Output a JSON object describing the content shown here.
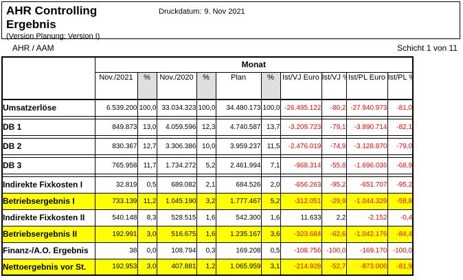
{
  "header": {
    "title": "AHR Controlling\nErgebnis",
    "version_note": "(Version Planung: Version I)",
    "print_date_label": "Druckdatum:",
    "print_date_value": "9. Nov 2021"
  },
  "meta": {
    "unit": "AHR / AAM",
    "page_info": "Schicht 1 von 11"
  },
  "colors": {
    "highlight": "#ffff00",
    "negative": "#ff0000",
    "hatch_gray": "#bfbfbf"
  },
  "table": {
    "group_header": "Monat",
    "columns": [
      {
        "label": "Nov./2021",
        "hatched": false
      },
      {
        "label": "%",
        "hatched": true
      },
      {
        "label": "Nov./2020",
        "hatched": false
      },
      {
        "label": "%",
        "hatched": true
      },
      {
        "label": "Plan",
        "hatched": false
      },
      {
        "label": "%",
        "hatched": true
      },
      {
        "label": "Ist/VJ\nEuro",
        "hatched": false
      },
      {
        "label": "Ist/VJ\n%",
        "hatched": false
      },
      {
        "label": "Ist/PL\nEuro",
        "hatched": false
      },
      {
        "label": "Ist/PL\n%",
        "hatched": false
      }
    ],
    "rows": [
      {
        "label": "Umsatzerlöse",
        "highlight": false,
        "spacer_after": true,
        "values": [
          "6.539.200",
          "100,0",
          "33.034.323",
          "100,0",
          "34.480.173",
          "100,0",
          "-26.495.122",
          "-80,2",
          "-27.940.973",
          "-81,0"
        ]
      },
      {
        "label": "DB 1",
        "highlight": false,
        "spacer_after": true,
        "values": [
          "849.873",
          "13,0",
          "4.059.596",
          "12,3",
          "4.740.587",
          "13,7",
          "-3.209.723",
          "-79,1",
          "-3.890.714",
          "-82,1"
        ]
      },
      {
        "label": "DB 2",
        "highlight": false,
        "spacer_after": true,
        "values": [
          "830.367",
          "12,7",
          "3.306.386",
          "10,0",
          "3.959.237",
          "11,5",
          "-2.476.019",
          "-74,9",
          "-3.128.870",
          "-79,0"
        ]
      },
      {
        "label": "DB 3",
        "highlight": false,
        "spacer_after": true,
        "values": [
          "765.958",
          "11,7",
          "1.734.272",
          "5,2",
          "2.461.994",
          "7,1",
          "-968.314",
          "-55,8",
          "-1.696.036",
          "-68,9"
        ]
      },
      {
        "label": "Indirekte Fixkosten I",
        "highlight": false,
        "spacer_after": false,
        "values": [
          "32.819",
          "0,5",
          "689.082",
          "2,1",
          "684.526",
          "2,0",
          "-656.263",
          "-95,2",
          "-651.707",
          "-95,2"
        ]
      },
      {
        "label": "Betriebsergebnis I",
        "highlight": true,
        "spacer_after": false,
        "values": [
          "733.139",
          "11,2",
          "1.045.190",
          "3,2",
          "1.777.467",
          "5,2",
          "-312.051",
          "-29,9",
          "-1.044.329",
          "-58,8"
        ]
      },
      {
        "label": "Indirekte Fixkosten II",
        "highlight": false,
        "spacer_after": false,
        "values": [
          "540.148",
          "8,3",
          "528.515",
          "1,6",
          "542.300",
          "1,6",
          "11.633",
          "2,2",
          "-2.152",
          "-0,4"
        ]
      },
      {
        "label": "Betriebsergebnis II",
        "highlight": true,
        "spacer_after": false,
        "values": [
          "192.991",
          "3,0",
          "516.675",
          "1,6",
          "1.235.167",
          "3,6",
          "-323.684",
          "-62,6",
          "-1.042.176",
          "-84,4"
        ]
      },
      {
        "label": "Finanz-/A.O. Ergebnis",
        "highlight": false,
        "spacer_after": false,
        "values": [
          "38",
          "0,0",
          "108.794",
          "0,3",
          "169.208",
          "0,5",
          "-108.756",
          "-100,0",
          "-169.170",
          "-100,0"
        ]
      },
      {
        "label": "Nettoergebnis vor St.",
        "highlight": true,
        "spacer_after": false,
        "values": [
          "192.953",
          "3,0",
          "407.881",
          "1,2",
          "1.065.959",
          "3,1",
          "-214.928",
          "-52,7",
          "-873.006",
          "-81,9"
        ]
      }
    ]
  }
}
